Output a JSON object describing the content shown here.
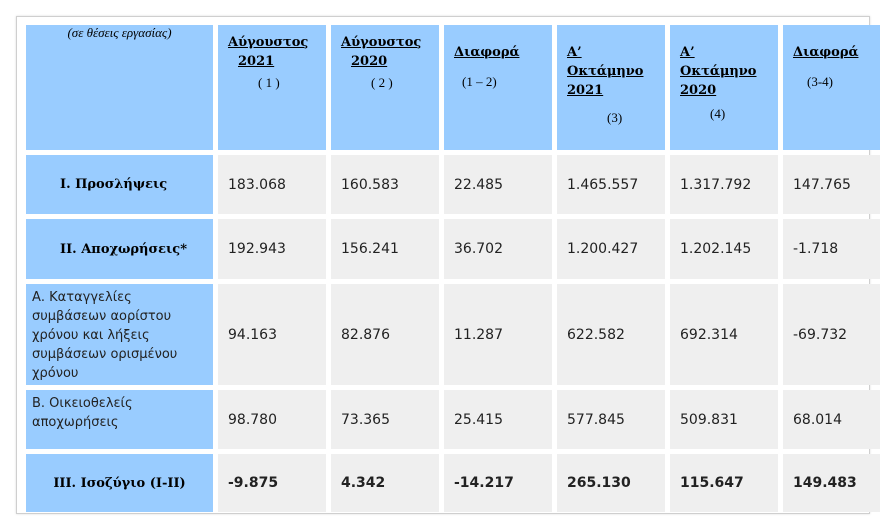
{
  "table": {
    "corner_label": "(σε θέσεις εργασίας)",
    "headers": [
      {
        "title": "Αύγουστος",
        "year": "2021",
        "num": "( 1 )"
      },
      {
        "title": "Αύγουστος",
        "year": "2020",
        "num": "( 2 )"
      },
      {
        "title": "Διαφορά",
        "year": "",
        "num": "(1 – 2)"
      },
      {
        "title": "Α’",
        "title2": "Οκτάμηνο",
        "year": "2021",
        "num": "(3)"
      },
      {
        "title": "Α’",
        "title2": "Οκτάμηνο",
        "year": "2020",
        "num": "(4)"
      },
      {
        "title": "Διαφορά",
        "year": "",
        "num": "(3-4)"
      }
    ],
    "rows": [
      {
        "label": "Ι. Προσλήψεις",
        "values": [
          "183.068",
          "160.583",
          "22.485",
          "1.465.557",
          "1.317.792",
          "147.765"
        ]
      },
      {
        "label": "ΙΙ. Αποχωρήσεις*",
        "values": [
          "192.943",
          "156.241",
          "36.702",
          "1.200.427",
          "1.202.145",
          "-1.718"
        ]
      },
      {
        "label": "Α. Καταγγελίες συμβάσεων αορίστου χρόνου  και λήξεις συμβάσεων ορισμένου χρόνου",
        "values": [
          "94.163",
          "82.876",
          "11.287",
          "622.582",
          "692.314",
          "-69.732"
        ]
      },
      {
        "label": "Β. Οικειοθελείς αποχωρήσεις",
        "values": [
          "98.780",
          "73.365",
          "25.415",
          "577.845",
          "509.831",
          "68.014"
        ]
      },
      {
        "label": "ΙΙΙ. Ισοζύγιο (Ι-ΙΙ)",
        "values": [
          "-9.875",
          "4.342",
          "-14.217",
          "265.130",
          "115.647",
          "149.483"
        ]
      }
    ]
  },
  "colors": {
    "header_bg": "#99ccff",
    "cell_bg": "#efefef"
  }
}
